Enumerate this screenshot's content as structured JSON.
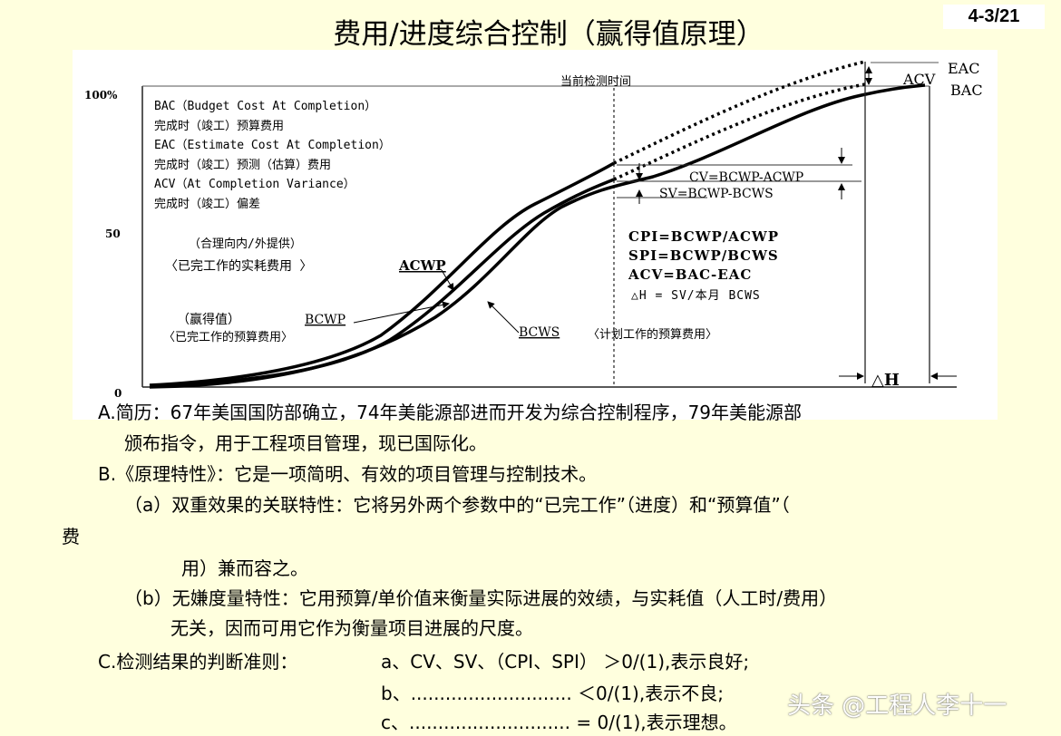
{
  "header": {
    "title": "费用/进度综合控制（赢得值原理）",
    "page_number": "4-3/21"
  },
  "figure": {
    "y_ticks": [
      "100%",
      "50",
      "0"
    ],
    "current_time_label": "当前检测时间",
    "definitions": [
      "BAC（Budget Cost At Completion）",
      "完成时（竣工）预算费用",
      "EAC（Estimate Cost At Completion）",
      "完成时（竣工）预测（估算）费用",
      "ACV（At Completion Variance）",
      "完成时（竣工）偏差"
    ],
    "acwp_note": "（合理向内/外提供）",
    "acwp_label_cn": "〈已完工作的实耗费用 〉",
    "acwp_label": "ACWP",
    "bcwp_label_cn": "（赢得值）",
    "bcwp_label": "BCWP",
    "bcwp_desc": "〈已完工作的预算费用〉",
    "bcws_label": "BCWS",
    "bcws_desc": "〈计划工作的预算费用〉",
    "cv_formula": "CV=BCWP-ACWP",
    "sv_formula": "SV=BCWP-BCWS",
    "formulas": [
      "CPI=BCWP/ACWP",
      "SPI=BCWP/BCWS",
      "ACV=BAC-EAC",
      "△H = SV/本月 BCWS"
    ],
    "eac_label": "EAC",
    "bac_label": "BAC",
    "acv_label": "ACV",
    "dh_label": "△H"
  },
  "body": {
    "a1": "A.简历：67年美国国防部确立，74年美能源部进而开发为综合控制程序，79年美能源部",
    "a2": "颁布指令，用于工程项目管理，现已国际化。",
    "b1": "B.《原理特性》：它是一项简明、有效的项目管理与控制技术。",
    "b2": "（a）双重效果的关联特性：它将另外两个参数中的“已完工作”（进度）和“预算值”（",
    "b3": "费",
    "b4": "用）兼而容之。",
    "b5": "（b）无嫌度量特性：它用预算/单价值来衡量实际进展的效绩，与实耗值（人工时/费用）",
    "b6": "无关，因而可用它作为衡量项目进展的尺度。",
    "c1": "C.检测结果的判断准则：",
    "c2": "a、CV、SV、（CPI、SPI） ＞0/(1),表示良好;",
    "c3": "b、............................ ＜0/(1),表示不良;",
    "c4": "c、............................ = 0/(1),表示理想。"
  },
  "watermark": "头条 @工程人李十一"
}
